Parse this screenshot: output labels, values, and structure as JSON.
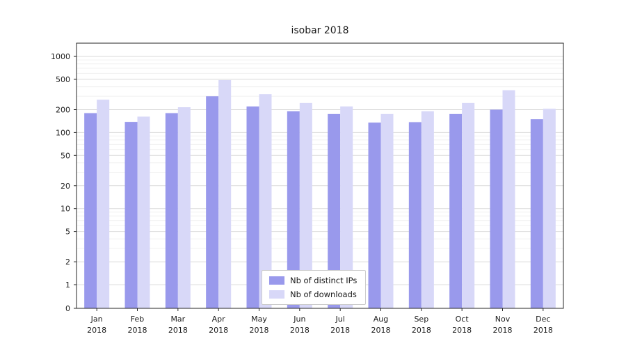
{
  "chart_data": {
    "type": "bar",
    "title": "isobar 2018",
    "categories": [
      "Jan 2018",
      "Feb 2018",
      "Mar 2018",
      "Apr 2018",
      "May 2018",
      "Jun 2018",
      "Jul 2018",
      "Aug 2018",
      "Sep 2018",
      "Oct 2018",
      "Nov 2018",
      "Dec 2018"
    ],
    "series": [
      {
        "name": "Nb of distinct IPs",
        "color": "#9999ec",
        "values": [
          180,
          138,
          180,
          300,
          220,
          190,
          175,
          135,
          137,
          175,
          200,
          150
        ]
      },
      {
        "name": "Nb of downloads",
        "color": "#d8d8f8",
        "values": [
          270,
          162,
          215,
          490,
          320,
          245,
          220,
          175,
          190,
          245,
          360,
          205
        ]
      }
    ],
    "yticks": [
      0,
      1,
      2,
      5,
      10,
      20,
      50,
      100,
      200,
      500,
      1000
    ],
    "yscale": "symlog",
    "ylim": [
      0,
      1000
    ],
    "xlabel": "",
    "ylabel": "",
    "grid": true,
    "legend_position": "lower center"
  }
}
